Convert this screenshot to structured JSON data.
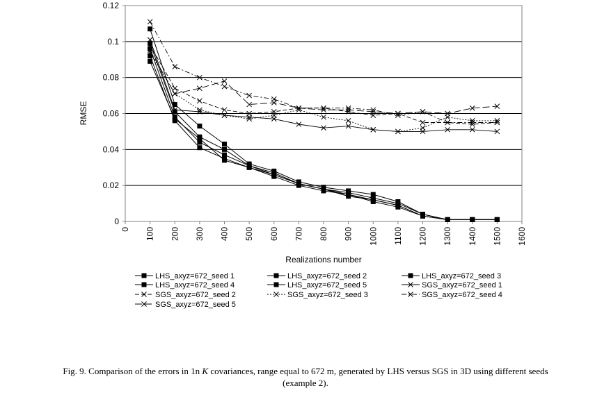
{
  "chart_data": {
    "type": "line",
    "title": "",
    "xlabel": "Realizations number",
    "ylabel": "RMSE",
    "xlim": [
      0,
      1600
    ],
    "ylim": [
      0,
      0.12
    ],
    "x_ticks": [
      "0",
      "100",
      "200",
      "300",
      "400",
      "500",
      "600",
      "700",
      "800",
      "900",
      "1000",
      "1100",
      "1200",
      "1300",
      "1400",
      "1500",
      "1600"
    ],
    "y_ticks": [
      "0",
      "0.02",
      "0.04",
      "0.06",
      "0.08",
      "0.1",
      "0.12"
    ],
    "grid": "horizontal",
    "x": [
      100,
      200,
      300,
      400,
      500,
      600,
      700,
      800,
      900,
      1000,
      1100,
      1200,
      1300,
      1400,
      1500
    ],
    "series": [
      {
        "name": "LHS_axyz=672_seed 1",
        "marker": "square",
        "dash": "solid",
        "values": [
          0.107,
          0.065,
          0.053,
          0.043,
          0.032,
          0.028,
          0.022,
          0.019,
          0.017,
          0.015,
          0.011,
          0.004,
          0.001,
          0.001,
          0.001
        ]
      },
      {
        "name": "LHS_axyz=672_seed 2",
        "marker": "square",
        "dash": "solid",
        "values": [
          0.099,
          0.061,
          0.047,
          0.04,
          0.031,
          0.027,
          0.021,
          0.018,
          0.016,
          0.013,
          0.01,
          0.004,
          0.001,
          0.001,
          0.001
        ]
      },
      {
        "name": "LHS_axyz=672_seed 3",
        "marker": "square",
        "dash": "solid",
        "values": [
          0.096,
          0.058,
          0.044,
          0.037,
          0.031,
          0.026,
          0.021,
          0.018,
          0.015,
          0.012,
          0.009,
          0.003,
          0.001,
          0.001,
          0.001
        ]
      },
      {
        "name": "LHS_axyz=672_seed 4",
        "marker": "square",
        "dash": "solid",
        "values": [
          0.092,
          0.056,
          0.041,
          0.035,
          0.03,
          0.025,
          0.02,
          0.017,
          0.015,
          0.011,
          0.008,
          0.003,
          0.001,
          0.001,
          0.001
        ]
      },
      {
        "name": "LHS_axyz=672_seed 5",
        "marker": "square",
        "dash": "solid",
        "values": [
          0.089,
          0.057,
          0.046,
          0.034,
          0.03,
          0.026,
          0.021,
          0.018,
          0.014,
          0.012,
          0.009,
          0.003,
          0.001,
          0.001,
          0.001
        ]
      },
      {
        "name": "SGS_axyz=672_seed 1",
        "marker": "x",
        "dash": "solid",
        "values": [
          0.101,
          0.062,
          0.061,
          0.059,
          0.058,
          0.057,
          0.054,
          0.052,
          0.053,
          0.051,
          0.05,
          0.05,
          0.051,
          0.051,
          0.05
        ]
      },
      {
        "name": "SGS_axyz=672_seed 2",
        "marker": "x",
        "dash": "dash",
        "values": [
          0.098,
          0.074,
          0.067,
          0.062,
          0.06,
          0.061,
          0.063,
          0.063,
          0.061,
          0.059,
          0.06,
          0.055,
          0.055,
          0.054,
          0.055
        ]
      },
      {
        "name": "SGS_axyz=672_seed 3",
        "marker": "x",
        "dash": "dot",
        "values": [
          0.094,
          0.071,
          0.062,
          0.059,
          0.057,
          0.059,
          0.062,
          0.058,
          0.056,
          0.051,
          0.05,
          0.052,
          0.058,
          0.056,
          0.056
        ]
      },
      {
        "name": "SGS_axyz=672_seed 4",
        "marker": "x",
        "dash": "dashdot",
        "values": [
          0.111,
          0.086,
          0.08,
          0.075,
          0.07,
          0.068,
          0.063,
          0.063,
          0.063,
          0.062,
          0.059,
          0.061,
          0.055,
          0.055,
          0.055
        ]
      },
      {
        "name": "SGS_axyz=672_seed 5",
        "marker": "x",
        "dash": "longdash",
        "values": [
          0.095,
          0.071,
          0.074,
          0.078,
          0.065,
          0.066,
          0.063,
          0.062,
          0.062,
          0.061,
          0.06,
          0.061,
          0.06,
          0.063,
          0.064
        ]
      }
    ]
  },
  "caption": {
    "lead": "Fig. 9. Comparison of the errors in 1n ",
    "italic": "K",
    "tail": " covariances, range equal to 672 m, generated by LHS versus SGS in 3D using different seeds",
    "line2": "(example 2)."
  }
}
